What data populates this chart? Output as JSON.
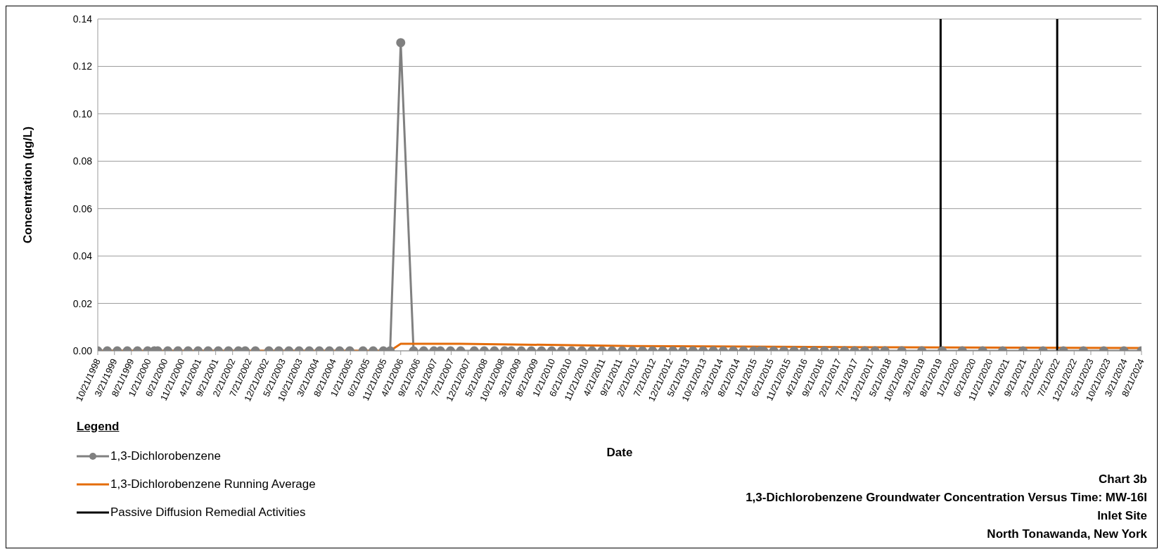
{
  "chart_data": {
    "type": "line",
    "title": "Chart 3b",
    "subtitle": "1,3-Dichlorobenzene Groundwater Concentration Versus Time: MW-16I",
    "annotations": [
      "Inlet Site",
      "North Tonawanda, New York"
    ],
    "xlabel": "Date",
    "ylabel": "Concentration (µg/L)",
    "legend_title": "Legend",
    "legend": "bottom left",
    "grid": "y",
    "xlim": [
      "1998-10-21",
      "2024-08-21"
    ],
    "xticks": [
      {
        "value": "1998-10-21",
        "label": "10/21/1998"
      },
      {
        "value": "1999-03-21",
        "label": "3/21/1999"
      },
      {
        "value": "1999-08-21",
        "label": "8/21/1999"
      },
      {
        "value": "2000-01-21",
        "label": "1/21/2000"
      },
      {
        "value": "2000-06-21",
        "label": "6/21/2000"
      },
      {
        "value": "2000-11-21",
        "label": "11/21/2000"
      },
      {
        "value": "2001-04-21",
        "label": "4/21/2001"
      },
      {
        "value": "2001-09-21",
        "label": "9/21/2001"
      },
      {
        "value": "2002-02-21",
        "label": "2/21/2002"
      },
      {
        "value": "2002-07-21",
        "label": "7/21/2002"
      },
      {
        "value": "2002-12-21",
        "label": "12/21/2002"
      },
      {
        "value": "2003-05-21",
        "label": "5/21/2003"
      },
      {
        "value": "2003-10-21",
        "label": "10/21/2003"
      },
      {
        "value": "2004-03-21",
        "label": "3/21/2004"
      },
      {
        "value": "2004-08-21",
        "label": "8/21/2004"
      },
      {
        "value": "2005-01-21",
        "label": "1/21/2005"
      },
      {
        "value": "2005-06-21",
        "label": "6/21/2005"
      },
      {
        "value": "2005-11-21",
        "label": "11/21/2005"
      },
      {
        "value": "2006-04-21",
        "label": "4/21/2006"
      },
      {
        "value": "2006-09-21",
        "label": "9/21/2006"
      },
      {
        "value": "2007-02-21",
        "label": "2/21/2007"
      },
      {
        "value": "2007-07-21",
        "label": "7/21/2007"
      },
      {
        "value": "2007-12-21",
        "label": "12/21/2007"
      },
      {
        "value": "2008-05-21",
        "label": "5/21/2008"
      },
      {
        "value": "2008-10-21",
        "label": "10/21/2008"
      },
      {
        "value": "2009-03-21",
        "label": "3/21/2009"
      },
      {
        "value": "2009-08-21",
        "label": "8/21/2009"
      },
      {
        "value": "2010-01-21",
        "label": "1/21/2010"
      },
      {
        "value": "2010-06-21",
        "label": "6/21/2010"
      },
      {
        "value": "2010-11-21",
        "label": "11/21/2010"
      },
      {
        "value": "2011-04-21",
        "label": "4/21/2011"
      },
      {
        "value": "2011-09-21",
        "label": "9/21/2011"
      },
      {
        "value": "2012-02-21",
        "label": "2/21/2012"
      },
      {
        "value": "2012-07-21",
        "label": "7/21/2012"
      },
      {
        "value": "2012-12-21",
        "label": "12/21/2012"
      },
      {
        "value": "2013-05-21",
        "label": "5/21/2013"
      },
      {
        "value": "2013-10-21",
        "label": "10/21/2013"
      },
      {
        "value": "2014-03-21",
        "label": "3/21/2014"
      },
      {
        "value": "2014-08-21",
        "label": "8/21/2014"
      },
      {
        "value": "2015-01-21",
        "label": "1/21/2015"
      },
      {
        "value": "2015-06-21",
        "label": "6/21/2015"
      },
      {
        "value": "2015-11-21",
        "label": "11/21/2015"
      },
      {
        "value": "2016-04-21",
        "label": "4/21/2016"
      },
      {
        "value": "2016-09-21",
        "label": "9/21/2016"
      },
      {
        "value": "2017-02-21",
        "label": "2/21/2017"
      },
      {
        "value": "2017-07-21",
        "label": "7/21/2017"
      },
      {
        "value": "2017-12-21",
        "label": "12/21/2017"
      },
      {
        "value": "2018-05-21",
        "label": "5/21/2018"
      },
      {
        "value": "2018-10-21",
        "label": "10/21/2018"
      },
      {
        "value": "2019-03-21",
        "label": "3/21/2019"
      },
      {
        "value": "2019-08-21",
        "label": "8/21/2019"
      },
      {
        "value": "2020-01-21",
        "label": "1/21/2020"
      },
      {
        "value": "2020-06-21",
        "label": "6/21/2020"
      },
      {
        "value": "2020-11-21",
        "label": "11/21/2020"
      },
      {
        "value": "2021-04-21",
        "label": "4/21/2021"
      },
      {
        "value": "2021-09-21",
        "label": "9/21/2021"
      },
      {
        "value": "2022-02-21",
        "label": "2/21/2022"
      },
      {
        "value": "2022-07-21",
        "label": "7/21/2022"
      },
      {
        "value": "2022-12-21",
        "label": "12/21/2022"
      },
      {
        "value": "2023-05-21",
        "label": "5/21/2023"
      },
      {
        "value": "2023-10-21",
        "label": "10/21/2023"
      },
      {
        "value": "2024-03-21",
        "label": "3/21/2024"
      },
      {
        "value": "2024-08-21",
        "label": "8/21/2024"
      }
    ],
    "ylim": [
      0,
      0.14
    ],
    "yticks": [
      {
        "value": 0,
        "label": "0.00"
      },
      {
        "value": 0.02,
        "label": "0.02"
      },
      {
        "value": 0.04,
        "label": "0.04"
      },
      {
        "value": 0.06,
        "label": "0.06"
      },
      {
        "value": 0.08,
        "label": "0.08"
      },
      {
        "value": 0.1,
        "label": "0.10"
      },
      {
        "value": 0.12,
        "label": "0.12"
      },
      {
        "value": 0.14,
        "label": "0.14"
      }
    ],
    "ref_lines": [
      {
        "axis": "x",
        "value": "2019-09-01",
        "label": "Passive Diffusion Remedial Activities",
        "color": "#000000"
      },
      {
        "axis": "x",
        "value": "2022-07-21",
        "label": null,
        "color": "#000000"
      }
    ],
    "series": [
      {
        "name": "1,3-Dichlorobenzene",
        "color": "#808080",
        "marker": "circle",
        "x": [
          "1998-10-21",
          "1999-01-15",
          "1999-04-15",
          "1999-07-15",
          "1999-10-15",
          "2000-01-15",
          "2000-03-15",
          "2000-04-15",
          "2000-07-15",
          "2000-10-15",
          "2001-01-15",
          "2001-04-15",
          "2001-07-15",
          "2001-10-15",
          "2002-01-15",
          "2002-04-15",
          "2002-06-15",
          "2002-09-15",
          "2003-01-15",
          "2003-04-15",
          "2003-07-15",
          "2003-10-15",
          "2004-01-15",
          "2004-04-15",
          "2004-07-15",
          "2004-10-15",
          "2005-01-15",
          "2005-05-15",
          "2005-08-15",
          "2005-11-15",
          "2006-01-15",
          "2006-04-21",
          "2006-08-15",
          "2006-11-15",
          "2007-02-15",
          "2007-04-15",
          "2007-07-15",
          "2007-10-15",
          "2008-02-15",
          "2008-05-15",
          "2008-08-15",
          "2008-11-15",
          "2009-01-15",
          "2009-04-15",
          "2009-07-15",
          "2009-10-15",
          "2010-01-15",
          "2010-04-15",
          "2010-07-15",
          "2010-10-15",
          "2011-01-15",
          "2011-04-15",
          "2011-07-15",
          "2011-10-15",
          "2012-01-15",
          "2012-04-15",
          "2012-07-15",
          "2012-10-15",
          "2013-01-15",
          "2013-04-15",
          "2013-07-15",
          "2013-10-15",
          "2014-01-15",
          "2014-04-15",
          "2014-07-15",
          "2014-10-15",
          "2015-01-15",
          "2015-03-15",
          "2015-04-15",
          "2015-07-15",
          "2015-10-15",
          "2016-01-15",
          "2016-04-15",
          "2016-07-15",
          "2016-10-15",
          "2017-01-15",
          "2017-04-15",
          "2017-07-15",
          "2017-10-15",
          "2018-01-15",
          "2018-04-15",
          "2018-09-15",
          "2019-03-15",
          "2019-09-15",
          "2020-03-15",
          "2020-09-15",
          "2021-03-15",
          "2021-09-15",
          "2022-03-15",
          "2022-09-15",
          "2023-03-15",
          "2023-09-15",
          "2024-03-15",
          "2024-08-21"
        ],
        "values": [
          0,
          0,
          0,
          0,
          0,
          0,
          0,
          0,
          0,
          0,
          0,
          0,
          0,
          0,
          0,
          0,
          0,
          0,
          0,
          0,
          0,
          0,
          0,
          0,
          0,
          0,
          0,
          0,
          0,
          0,
          0,
          0.13,
          0,
          0,
          0,
          0,
          0,
          0,
          0,
          0,
          0,
          0,
          0,
          0,
          0,
          0,
          0,
          0,
          0,
          0,
          0,
          0,
          0,
          0,
          0,
          0,
          0,
          0,
          0,
          0,
          0,
          0,
          0,
          0,
          0,
          0,
          0,
          0,
          0,
          0,
          0,
          0,
          0,
          0,
          0,
          0,
          0,
          0,
          0,
          0,
          0,
          0,
          0,
          0,
          0,
          0,
          0,
          0,
          0,
          0,
          0,
          0,
          0,
          0
        ]
      },
      {
        "name": "1,3-Dichlorobenzene Running Average",
        "color": "#e46c0a",
        "marker": "none",
        "x": [
          "1998-10-21",
          "2006-01-15",
          "2006-04-21",
          "2007-10-15",
          "2012-01-15",
          "2018-01-15",
          "2024-08-21"
        ],
        "values": [
          0,
          0,
          0.003,
          0.003,
          0.002,
          0.0015,
          0.0012
        ]
      }
    ]
  }
}
